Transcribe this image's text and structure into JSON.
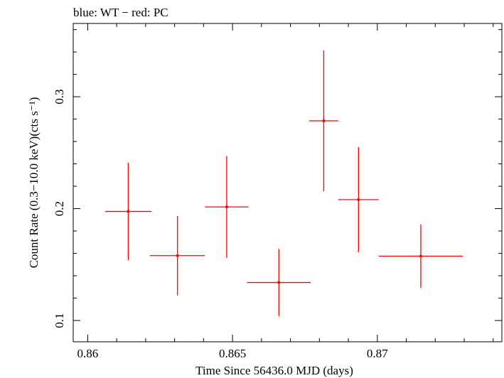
{
  "chart_data": {
    "type": "scatter",
    "title": "blue: WT − red: PC",
    "xlabel": "Time Since 56436.0 MJD (days)",
    "ylabel": "Count Rate (0.3−10.0 keV)(cts s⁻¹)",
    "xlim": [
      0.8595,
      0.8743
    ],
    "ylim": [
      0.081,
      0.3655
    ],
    "x_ticks": [
      0.86,
      0.865,
      0.87
    ],
    "x_tick_labels": [
      "0.86",
      "0.865",
      "0.87"
    ],
    "y_ticks": [
      0.1,
      0.2,
      0.3
    ],
    "y_tick_labels": [
      "0.1",
      "0.2",
      "0.3"
    ],
    "grid": false,
    "series": [
      {
        "name": "PC",
        "color": "#ff0000",
        "points": [
          {
            "x": 0.8614,
            "y": 0.1975,
            "xerr": 0.0008,
            "yerr": 0.0435
          },
          {
            "x": 0.8631,
            "y": 0.158,
            "xerr": 0.00095,
            "yerr": 0.0355
          },
          {
            "x": 0.8648,
            "y": 0.2015,
            "xerr": 0.00075,
            "yerr": 0.0455
          },
          {
            "x": 0.8666,
            "y": 0.134,
            "xerr": 0.0011,
            "yerr": 0.03
          },
          {
            "x": 0.86815,
            "y": 0.2785,
            "xerr": 0.0005,
            "yerr": 0.063
          },
          {
            "x": 0.86935,
            "y": 0.208,
            "xerr": 0.0007,
            "yerr": 0.047
          },
          {
            "x": 0.8715,
            "y": 0.1575,
            "xerr": 0.00145,
            "yerr": 0.0285
          }
        ]
      }
    ]
  }
}
